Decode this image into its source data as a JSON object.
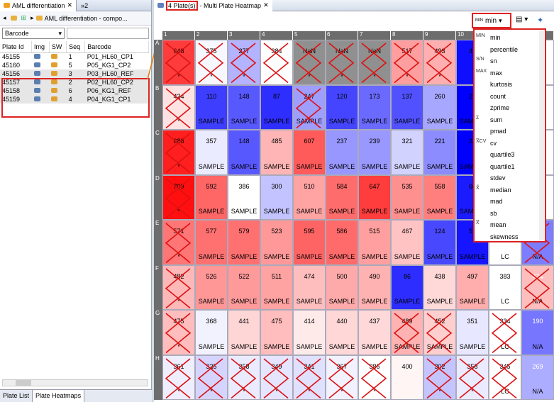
{
  "left": {
    "tab_title": "AML differentiation",
    "tab2": "»2",
    "breadcrumb": "AML differentiation - compo...",
    "filter": "Barcode",
    "columns": [
      "Plate Id",
      "Img",
      "SW",
      "Seq",
      "Barcode"
    ],
    "rows": [
      [
        "45155",
        "1",
        "P01_HL60_CP1"
      ],
      [
        "45160",
        "5",
        "P05_KG1_CP2"
      ],
      [
        "45156",
        "3",
        "P03_HL60_REF"
      ],
      [
        "45157",
        "2",
        "P02_HL60_CP2"
      ],
      [
        "45158",
        "6",
        "P06_KG1_REF"
      ],
      [
        "45159",
        "4",
        "P04_KG1_CP1"
      ]
    ],
    "bottom_tabs": [
      "Plate List",
      "Plate Heatmaps"
    ]
  },
  "right": {
    "tab_prefix": "4 Plate(s)",
    "tab_title": " - Multi Plate Heatmap",
    "stat_prefix": "MIN",
    "stat_value": "min",
    "columns": [
      "1",
      "2",
      "3",
      "4",
      "5",
      "6",
      "7",
      "8",
      "9",
      "10",
      "11",
      "12"
    ],
    "rows": [
      "A",
      "B",
      "C",
      "D",
      "E",
      "F",
      "G",
      "H"
    ],
    "cells": [
      [
        "648",
        "375",
        "277",
        "384",
        "NaN",
        "NaN",
        "NaN",
        "517",
        "493",
        "43",
        "",
        ""
      ],
      [
        "424",
        "110",
        "148",
        "87",
        "247",
        "120",
        "173",
        "137",
        "260",
        "22",
        "",
        ""
      ],
      [
        "688",
        "357",
        "148",
        "485",
        "607",
        "237",
        "239",
        "321",
        "221",
        "22",
        "",
        ""
      ],
      [
        "709",
        "592",
        "386",
        "300",
        "510",
        "584",
        "647",
        "535",
        "558",
        "60",
        "",
        ""
      ],
      [
        "571",
        "577",
        "579",
        "523",
        "595",
        "586",
        "515",
        "467",
        "124",
        "51",
        "",
        "N/A"
      ],
      [
        "482",
        "526",
        "522",
        "511",
        "474",
        "500",
        "490",
        "86",
        "438",
        "497",
        "383",
        "474"
      ],
      [
        "475",
        "368",
        "441",
        "475",
        "414",
        "440",
        "437",
        "489",
        "452",
        "351",
        "334",
        "190"
      ],
      [
        "361",
        "325",
        "358",
        "349",
        "341",
        "367",
        "386",
        "400",
        "302",
        "358",
        "345",
        "269"
      ]
    ],
    "labels": [
      [
        "*",
        "*",
        "*",
        "",
        "*",
        "*",
        "*",
        "*",
        "*",
        "",
        "",
        ""
      ],
      [
        "*",
        "SAMPLE",
        "SAMPLE",
        "SAMPLE",
        "SAMPLE",
        "SAMPLE",
        "SAMPLE",
        "SAMPLE",
        "SAMPLE",
        "SAMPLE",
        "",
        ""
      ],
      [
        "*",
        "SAMPLE",
        "SAMPLE",
        "SAMPLE",
        "SAMPLE",
        "SAMPLE",
        "SAMPLE",
        "SAMPLE",
        "SAMPLE",
        "SAMPLE",
        "",
        ""
      ],
      [
        "*",
        "SAMPLE",
        "SAMPLE",
        "SAMPLE",
        "SAMPLE",
        "SAMPLE",
        "SAMPLE",
        "SAMPLE",
        "SAMPLE",
        "SAMPLE",
        "",
        ""
      ],
      [
        "*",
        "SAMPLE",
        "SAMPLE",
        "SAMPLE",
        "SAMPLE",
        "SAMPLE",
        "SAMPLE",
        "SAMPLE",
        "SAMPLE",
        "SAMPLE",
        "LC",
        "N/A"
      ],
      [
        "*",
        "SAMPLE",
        "SAMPLE",
        "SAMPLE",
        "SAMPLE",
        "SAMPLE",
        "SAMPLE",
        "SAMPLE",
        "SAMPLE",
        "SAMPLE",
        "LC",
        "N/A"
      ],
      [
        "*",
        "SAMPLE",
        "SAMPLE",
        "SAMPLE",
        "SAMPLE",
        "SAMPLE",
        "SAMPLE",
        "SAMPLE",
        "SAMPLE",
        "SAMPLE",
        "LC",
        "N/A"
      ],
      [
        "*",
        "*",
        "*",
        "*",
        "*",
        "*",
        "*",
        "",
        "*",
        "*",
        "LC",
        "N/A"
      ]
    ],
    "crossed": [
      [
        0,
        0
      ],
      [
        0,
        1
      ],
      [
        0,
        2
      ],
      [
        0,
        3
      ],
      [
        0,
        4
      ],
      [
        0,
        5
      ],
      [
        0,
        6
      ],
      [
        0,
        7
      ],
      [
        0,
        8
      ],
      [
        1,
        0
      ],
      [
        1,
        4
      ],
      [
        2,
        0
      ],
      [
        3,
        0
      ],
      [
        4,
        0
      ],
      [
        4,
        11
      ],
      [
        5,
        0
      ],
      [
        5,
        11
      ],
      [
        6,
        0
      ],
      [
        6,
        7
      ],
      [
        6,
        8
      ],
      [
        6,
        10
      ],
      [
        7,
        0
      ],
      [
        7,
        1
      ],
      [
        7,
        2
      ],
      [
        7,
        3
      ],
      [
        7,
        4
      ],
      [
        7,
        5
      ],
      [
        7,
        6
      ],
      [
        7,
        8
      ],
      [
        7,
        9
      ],
      [
        7,
        10
      ]
    ],
    "nan_cells": [
      [
        0,
        4
      ],
      [
        0,
        5
      ],
      [
        0,
        6
      ]
    ],
    "stats": [
      "min",
      "percentile",
      "sn",
      "max",
      "kurtosis",
      "count",
      "zprime",
      "sum",
      "pmad",
      "cv",
      "quartile3",
      "quartile1",
      "stdev",
      "median",
      "mad",
      "sb",
      "mean",
      "skewness"
    ],
    "stat_icons": {
      "0": "MIN",
      "2": "S/N",
      "3": "MAX",
      "7": "Σ",
      "9": "X̅CV",
      "13": "X̃",
      "16": "X̅"
    }
  },
  "colors": {
    "min": "#3030ff",
    "mid": "#ffffff",
    "max": "#ff0000",
    "nan": "#909090",
    "cross": "#dd1111",
    "highlight": "#d22"
  }
}
